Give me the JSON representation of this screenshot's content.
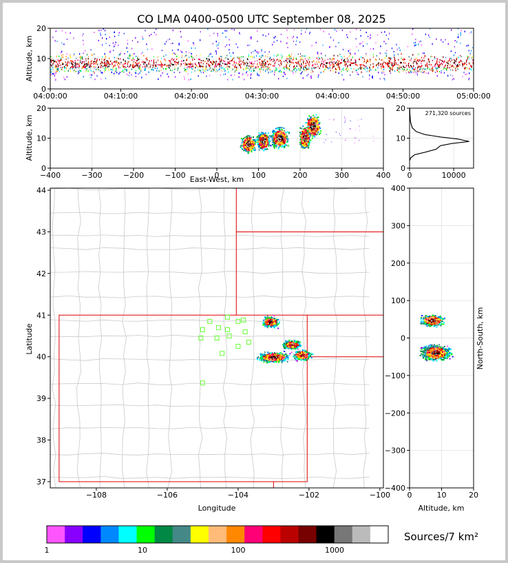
{
  "chart_data": [
    {
      "type": "scatter",
      "name": "time-height",
      "title": "CO LMA 0400-0500 UTC September 08, 2025",
      "ylabel": "Altitude, km",
      "ylim": [
        0,
        20
      ],
      "xlim": [
        "04:00:00",
        "05:00:00"
      ],
      "x_ticks": [
        "04:00:00",
        "04:10:00",
        "04:20:00",
        "04:30:00",
        "04:40:00",
        "04:50:00",
        "05:00:00"
      ],
      "y_ticks": [
        "0",
        "10",
        "20"
      ],
      "description": "dense lightning sources between 3 and 20 km altitude across the hour, core 5-12 km"
    },
    {
      "type": "scatter",
      "name": "east-west-height",
      "xlabel": "East-West, km",
      "ylabel": "Altitude, km",
      "xlim": [
        -400,
        400
      ],
      "ylim": [
        0,
        20
      ],
      "x_ticks": [
        "−400",
        "−300",
        "−200",
        "−100",
        "0",
        "100",
        "200",
        "300",
        "400"
      ],
      "y_ticks": [
        "0",
        "10",
        "20"
      ]
    },
    {
      "type": "line",
      "name": "altitude-histogram",
      "annotation": "271,320 sources",
      "xlim": [
        0,
        14500
      ],
      "ylim": [
        0,
        20
      ],
      "x_ticks": [
        "0",
        "10000"
      ],
      "y_ticks": [
        "0",
        "10",
        "20"
      ],
      "profile": [
        [
          0,
          2.5
        ],
        [
          300,
          3.5
        ],
        [
          1200,
          4.5
        ],
        [
          3500,
          5.3
        ],
        [
          6000,
          6.3
        ],
        [
          7000,
          7.5
        ],
        [
          9500,
          8.2
        ],
        [
          13500,
          8.9
        ],
        [
          11000,
          9.7
        ],
        [
          7000,
          10.4
        ],
        [
          3500,
          11.2
        ],
        [
          1500,
          12.2
        ],
        [
          600,
          13.5
        ],
        [
          200,
          15.5
        ],
        [
          80,
          18
        ],
        [
          30,
          20
        ]
      ]
    },
    {
      "type": "heatmap",
      "name": "plan-view",
      "xlabel": "Longitude",
      "ylabel": "Latitude",
      "xlim": [
        -109.3,
        -99.9
      ],
      "ylim": [
        36.85,
        44.05
      ],
      "x_ticks": [
        "−108",
        "−106",
        "−104",
        "−102",
        "−100"
      ],
      "y_ticks": [
        "37",
        "38",
        "39",
        "40",
        "41",
        "42",
        "43",
        "44"
      ],
      "stations": [
        [
          -105.0,
          40.65
        ],
        [
          -104.8,
          40.85
        ],
        [
          -104.55,
          40.7
        ],
        [
          -104.3,
          40.95
        ],
        [
          -104.0,
          40.85
        ],
        [
          -103.85,
          40.88
        ],
        [
          -104.3,
          40.65
        ],
        [
          -103.8,
          40.6
        ],
        [
          -105.05,
          40.45
        ],
        [
          -104.6,
          40.45
        ],
        [
          -104.25,
          40.5
        ],
        [
          -104.0,
          40.25
        ],
        [
          -103.7,
          40.35
        ],
        [
          -104.45,
          40.08
        ],
        [
          -105.0,
          39.37
        ]
      ]
    },
    {
      "type": "scatter",
      "name": "north-south-height",
      "xlabel": "Altitude, km",
      "ylabel": "North-South, km",
      "xlim": [
        0,
        20
      ],
      "ylim": [
        -400,
        400
      ],
      "x_ticks": [
        "0",
        "10",
        "20"
      ],
      "y_ticks": [
        "400",
        "300",
        "200",
        "100",
        "0",
        "−100",
        "−200",
        "−300",
        "−400"
      ]
    },
    {
      "type": "colorbar",
      "name": "density-colorbar",
      "label": "Sources/7 km²",
      "ticks": [
        "1",
        "10",
        "100",
        "1000"
      ],
      "colors": [
        "#ff55ff",
        "#8800ff",
        "#0000ff",
        "#0088ff",
        "#00ffff",
        "#00ff00",
        "#008844",
        "#448888",
        "#ffff00",
        "#ffbb77",
        "#ff8800",
        "#ff0077",
        "#ff0000",
        "#bb0000",
        "#770000",
        "#000000",
        "#777777",
        "#bbbbbb",
        "#ffffff"
      ]
    }
  ]
}
